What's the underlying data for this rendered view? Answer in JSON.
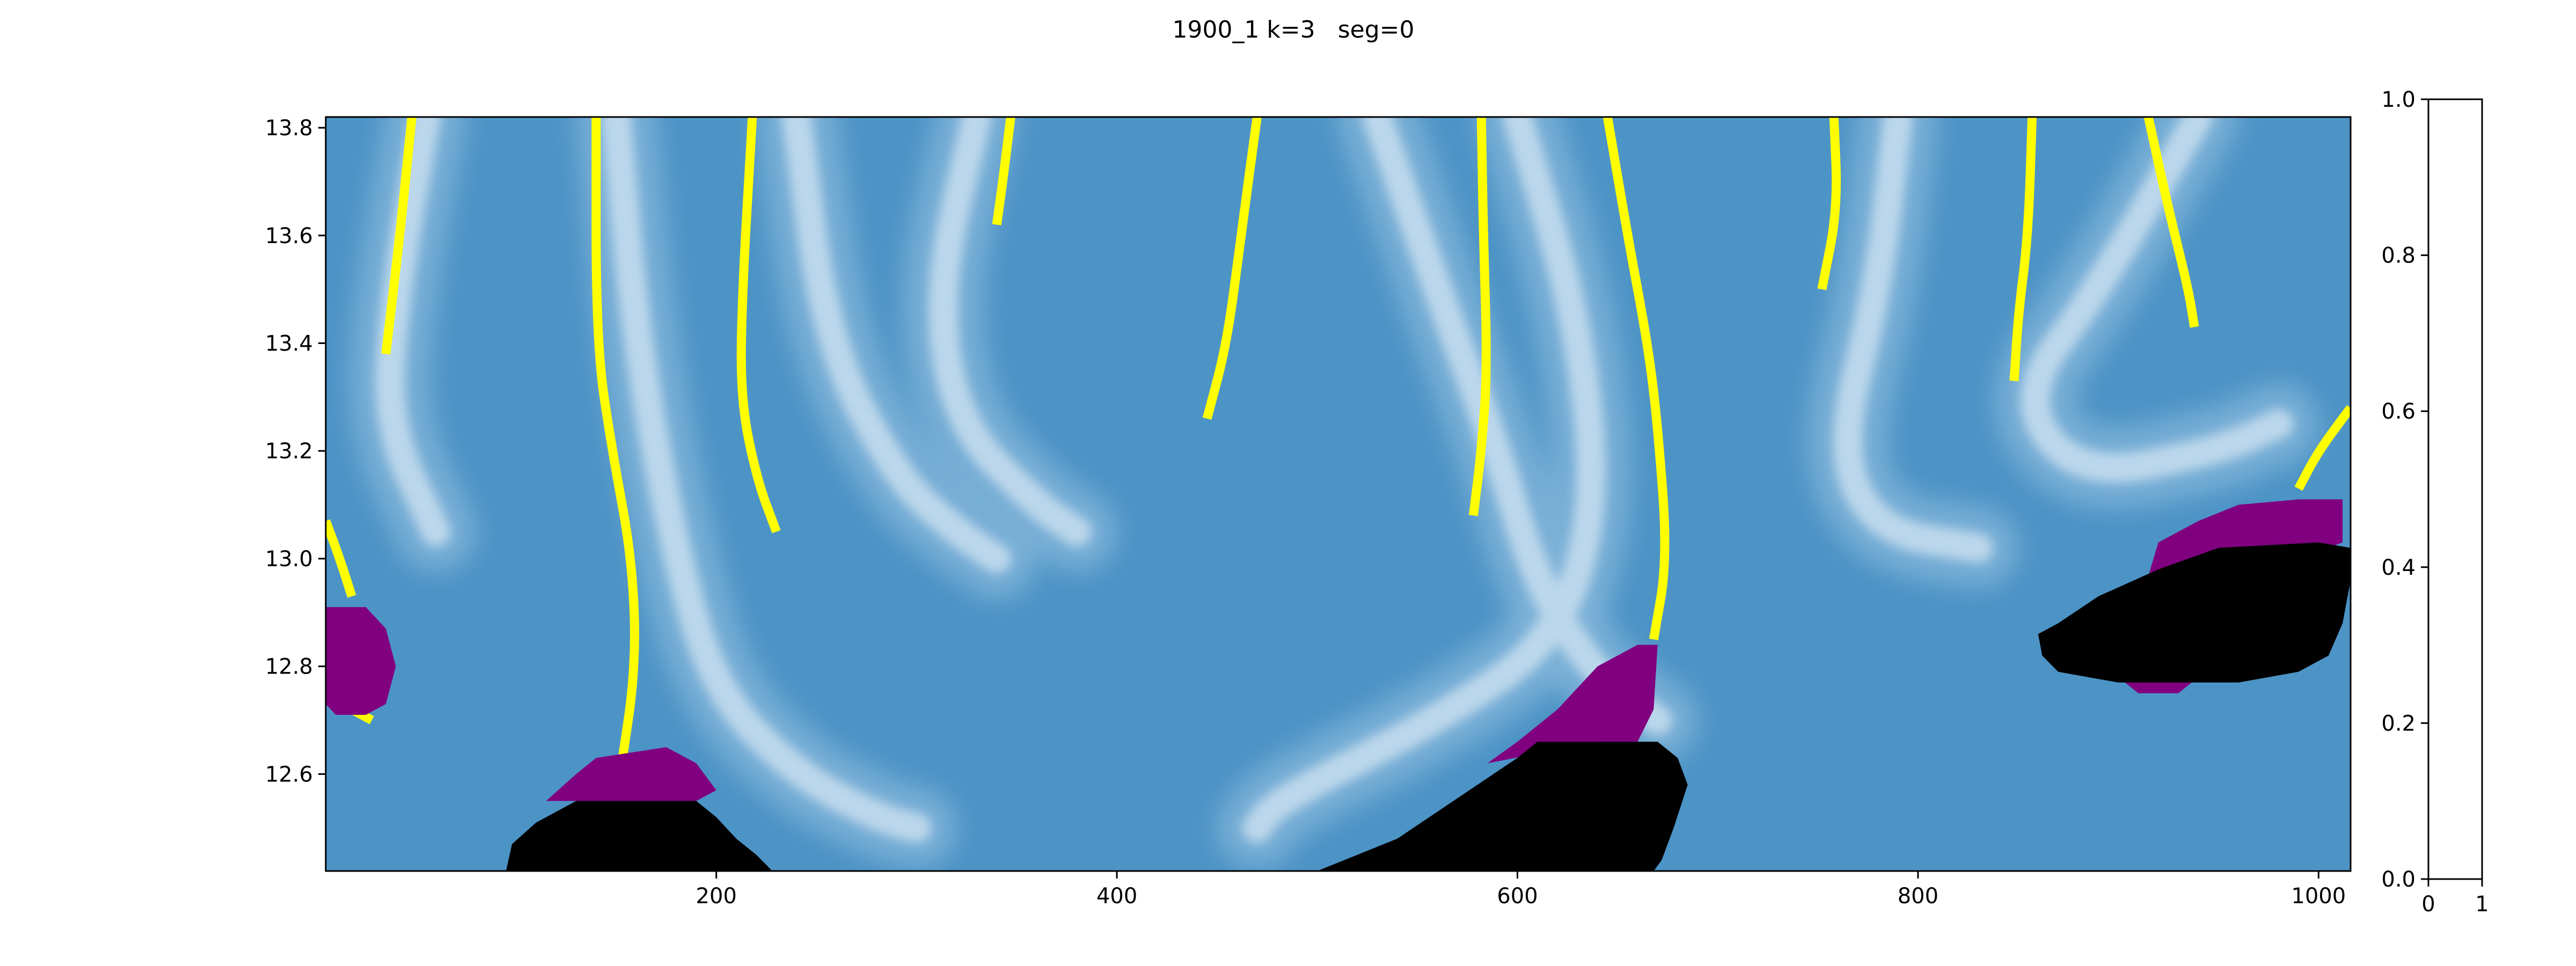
{
  "chart_data": [
    {
      "type": "heatmap",
      "title": "1900_1 k=3   seg=0",
      "xlabel": "",
      "ylabel": "",
      "xlim": [
        5,
        1016
      ],
      "ylim": [
        12.42,
        13.82
      ],
      "xticks": [
        200,
        400,
        600,
        800,
        1000
      ],
      "xtick_labels": [
        "200",
        "400",
        "600",
        "800",
        "1000"
      ],
      "yticks": [
        12.6,
        12.8,
        13.0,
        13.2,
        13.4,
        13.6,
        13.8
      ],
      "ytick_labels": [
        "12.6",
        "12.8",
        "13.0",
        "13.2",
        "13.4",
        "13.6",
        "13.8"
      ],
      "colormap": "Blues",
      "colors": {
        "background": "#4d94c6",
        "light": "#bcd7eb",
        "mid": "#7fb3d8",
        "yellow": "#ffff00",
        "purple": "#800080",
        "black": "#000000"
      },
      "light_streaks": [
        {
          "name": "streak-1",
          "points": [
            [
              55,
              13.82
            ],
            [
              40,
              13.5
            ],
            [
              35,
              13.25
            ],
            [
              60,
              13.05
            ]
          ]
        },
        {
          "name": "streak-2",
          "points": [
            [
              150,
              13.82
            ],
            [
              160,
              13.4
            ],
            [
              180,
              13.0
            ],
            [
              200,
              12.75
            ],
            [
              240,
              12.6
            ],
            [
              280,
              12.52
            ],
            [
              300,
              12.5
            ]
          ]
        },
        {
          "name": "streak-3",
          "points": [
            [
              240,
              13.82
            ],
            [
              255,
              13.4
            ],
            [
              290,
              13.15
            ],
            [
              320,
              13.05
            ],
            [
              340,
              13.0
            ]
          ]
        },
        {
          "name": "streak-4",
          "points": [
            [
              330,
              13.82
            ],
            [
              310,
              13.5
            ],
            [
              320,
              13.25
            ],
            [
              360,
              13.1
            ],
            [
              380,
              13.05
            ]
          ]
        },
        {
          "name": "streak-5",
          "points": [
            [
              530,
              13.82
            ],
            [
              560,
              13.5
            ],
            [
              590,
              13.2
            ],
            [
              610,
              12.95
            ],
            [
              640,
              12.78
            ],
            [
              670,
              12.7
            ]
          ]
        },
        {
          "name": "streak-6",
          "points": [
            [
              600,
              13.82
            ],
            [
              630,
              13.45
            ],
            [
              640,
              13.1
            ],
            [
              620,
              12.85
            ],
            [
              560,
              12.7
            ],
            [
              480,
              12.55
            ],
            [
              470,
              12.5
            ]
          ]
        },
        {
          "name": "streak-7",
          "points": [
            [
              790,
              13.82
            ],
            [
              780,
              13.5
            ],
            [
              760,
              13.2
            ],
            [
              780,
              13.05
            ],
            [
              830,
              13.02
            ]
          ]
        },
        {
          "name": "streak-8",
          "points": [
            [
              940,
              13.82
            ],
            [
              890,
              13.5
            ],
            [
              850,
              13.3
            ],
            [
              880,
              13.15
            ],
            [
              950,
              13.2
            ],
            [
              980,
              13.25
            ]
          ]
        }
      ],
      "yellow_boundaries": [
        {
          "name": "yellow-1",
          "points": [
            [
              48,
              13.82
            ],
            [
              42,
              13.6
            ],
            [
              35,
              13.38
            ]
          ]
        },
        {
          "name": "yellow-2",
          "points": [
            [
              140,
              13.82
            ],
            [
              140,
              13.4
            ],
            [
              148,
              13.2
            ],
            [
              158,
              13.0
            ],
            [
              160,
              12.8
            ],
            [
              152,
              12.6
            ]
          ]
        },
        {
          "name": "yellow-3",
          "points": [
            [
              218,
              13.82
            ],
            [
              213,
              13.5
            ],
            [
              212,
              13.3
            ],
            [
              220,
              13.15
            ],
            [
              230,
              13.05
            ]
          ]
        },
        {
          "name": "yellow-4",
          "points": [
            [
              347,
              13.82
            ],
            [
              343,
              13.7
            ],
            [
              340,
              13.62
            ]
          ]
        },
        {
          "name": "yellow-5",
          "points": [
            [
              470,
              13.82
            ],
            [
              462,
              13.6
            ],
            [
              455,
              13.4
            ],
            [
              445,
              13.26
            ]
          ]
        },
        {
          "name": "yellow-6",
          "points": [
            [
              582,
              13.82
            ],
            [
              583,
              13.6
            ],
            [
              585,
              13.35
            ],
            [
              582,
              13.2
            ],
            [
              578,
              13.08
            ]
          ]
        },
        {
          "name": "yellow-7",
          "points": [
            [
              645,
              13.82
            ],
            [
              655,
              13.6
            ],
            [
              665,
              13.4
            ],
            [
              670,
              13.25
            ],
            [
              675,
              13.0
            ],
            [
              668,
              12.85
            ]
          ]
        },
        {
          "name": "yellow-8",
          "points": [
            [
              758,
              13.82
            ],
            [
              760,
              13.65
            ],
            [
              752,
              13.5
            ]
          ]
        },
        {
          "name": "yellow-9",
          "points": [
            [
              857,
              13.82
            ],
            [
              855,
              13.6
            ],
            [
              850,
              13.45
            ],
            [
              848,
              13.33
            ]
          ]
        },
        {
          "name": "yellow-10",
          "points": [
            [
              915,
              13.82
            ],
            [
              925,
              13.65
            ],
            [
              935,
              13.5
            ],
            [
              938,
              13.43
            ]
          ]
        },
        {
          "name": "yellow-11",
          "points": [
            [
              1016,
              13.28
            ],
            [
              1000,
              13.2
            ],
            [
              990,
              13.13
            ]
          ]
        },
        {
          "name": "yellow-12",
          "points": [
            [
              5,
              13.07
            ],
            [
              12,
              13.0
            ],
            [
              18,
              12.93
            ]
          ]
        },
        {
          "name": "yellow-13",
          "points": [
            [
              18,
              12.72
            ],
            [
              28,
              12.7
            ]
          ]
        }
      ],
      "purple_regions": [
        {
          "name": "purple-left",
          "points": [
            [
              5,
              12.91
            ],
            [
              25,
              12.91
            ],
            [
              35,
              12.87
            ],
            [
              40,
              12.8
            ],
            [
              35,
              12.73
            ],
            [
              25,
              12.71
            ],
            [
              10,
              12.71
            ],
            [
              5,
              12.73
            ]
          ]
        },
        {
          "name": "purple-bottom-left",
          "points": [
            [
              115,
              12.55
            ],
            [
              130,
              12.6
            ],
            [
              140,
              12.63
            ],
            [
              175,
              12.65
            ],
            [
              190,
              12.62
            ],
            [
              200,
              12.57
            ],
            [
              190,
              12.55
            ]
          ]
        },
        {
          "name": "purple-center",
          "points": [
            [
              585,
              12.62
            ],
            [
              600,
              12.66
            ],
            [
              620,
              12.72
            ],
            [
              640,
              12.8
            ],
            [
              660,
              12.84
            ],
            [
              670,
              12.84
            ],
            [
              668,
              12.72
            ],
            [
              660,
              12.66
            ],
            [
              640,
              12.66
            ]
          ]
        },
        {
          "name": "purple-right",
          "points": [
            [
              920,
              13.03
            ],
            [
              940,
              13.07
            ],
            [
              960,
              13.1
            ],
            [
              990,
              13.11
            ],
            [
              1012,
              13.11
            ],
            [
              1012,
              13.03
            ],
            [
              990,
              13.0
            ],
            [
              950,
              12.95
            ],
            [
              940,
              12.78
            ],
            [
              930,
              12.75
            ],
            [
              910,
              12.75
            ],
            [
              900,
              12.78
            ]
          ]
        }
      ],
      "black_regions": [
        {
          "name": "black-bottom-left",
          "points": [
            [
              95,
              12.42
            ],
            [
              98,
              12.47
            ],
            [
              110,
              12.51
            ],
            [
              130,
              12.55
            ],
            [
              190,
              12.55
            ],
            [
              200,
              12.52
            ],
            [
              210,
              12.48
            ],
            [
              220,
              12.45
            ],
            [
              228,
              12.42
            ]
          ]
        },
        {
          "name": "black-bottom-center",
          "points": [
            [
              500,
              12.42
            ],
            [
              520,
              12.45
            ],
            [
              540,
              12.48
            ],
            [
              560,
              12.53
            ],
            [
              580,
              12.58
            ],
            [
              600,
              12.63
            ],
            [
              610,
              12.66
            ],
            [
              670,
              12.66
            ],
            [
              680,
              12.63
            ],
            [
              685,
              12.58
            ],
            [
              678,
              12.5
            ],
            [
              672,
              12.44
            ],
            [
              668,
              12.42
            ]
          ]
        },
        {
          "name": "black-right",
          "points": [
            [
              860,
              12.86
            ],
            [
              870,
              12.88
            ],
            [
              890,
              12.93
            ],
            [
              920,
              12.98
            ],
            [
              950,
              13.02
            ],
            [
              1000,
              13.03
            ],
            [
              1016,
              13.02
            ],
            [
              1016,
              12.96
            ],
            [
              1012,
              12.88
            ],
            [
              1005,
              12.82
            ],
            [
              990,
              12.79
            ],
            [
              960,
              12.77
            ],
            [
              900,
              12.77
            ],
            [
              870,
              12.79
            ],
            [
              862,
              12.82
            ]
          ]
        }
      ]
    },
    {
      "type": "heatmap",
      "title": "",
      "ylim": [
        0.0,
        1.0
      ],
      "xlim": [
        0,
        1
      ],
      "xticks": [
        0,
        1
      ],
      "xtick_labels": [
        "0",
        "1"
      ],
      "yticks": [
        0.0,
        0.2,
        0.4,
        0.6,
        0.8,
        1.0
      ],
      "ytick_labels": [
        "0.0",
        "0.2",
        "0.4",
        "0.6",
        "0.8",
        "1.0"
      ],
      "values": []
    }
  ]
}
